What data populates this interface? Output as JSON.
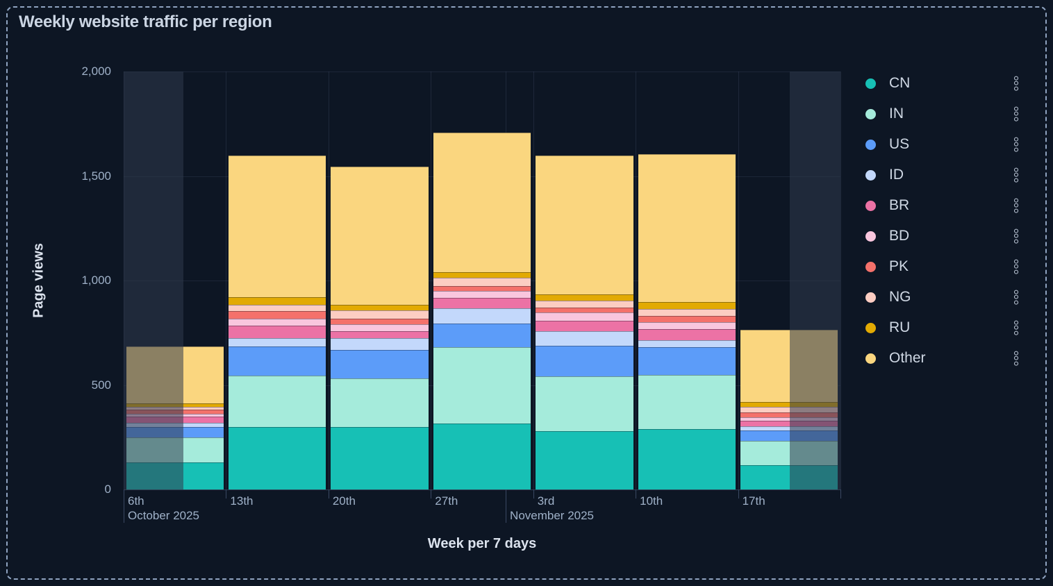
{
  "panel": {
    "title": "Weekly website traffic per region"
  },
  "chart_data": {
    "type": "bar",
    "stacked": true,
    "title": "Weekly website traffic per region",
    "xlabel": "Week per 7 days",
    "ylabel": "Page views",
    "ylim": [
      0,
      2000
    ],
    "grid": true,
    "legend_position": "right",
    "background_color": "#0D1624",
    "y_ticks": [
      {
        "label": "0",
        "value": 0
      },
      {
        "label": "500",
        "value": 500
      },
      {
        "label": "1,000",
        "value": 1000
      },
      {
        "label": "1,500",
        "value": 1500
      },
      {
        "label": "2,000",
        "value": 2000
      }
    ],
    "categories": [
      "6th",
      "13th",
      "20th",
      "27th",
      "3rd",
      "10th",
      "17th"
    ],
    "month_labels": [
      {
        "text": "October 2025",
        "frac": 0
      },
      {
        "text": "November 2025",
        "frac": 0.533
      }
    ],
    "series": [
      {
        "name": "CN",
        "color": "#17C0B5",
        "values": [
          130,
          300,
          300,
          315,
          280,
          290,
          115
        ]
      },
      {
        "name": "IN",
        "color": "#A5EBDB",
        "values": [
          120,
          245,
          232,
          365,
          263,
          259,
          116
        ]
      },
      {
        "name": "US",
        "color": "#5C9CF9",
        "values": [
          50,
          139,
          137,
          115,
          146,
          133,
          50
        ]
      },
      {
        "name": "ID",
        "color": "#C3D8FB",
        "values": [
          18,
          40,
          55,
          73,
          69,
          33,
          22
        ]
      },
      {
        "name": "BR",
        "color": "#EC72A5",
        "values": [
          30,
          60,
          33,
          50,
          51,
          51,
          25
        ]
      },
      {
        "name": "BD",
        "color": "#F9C6DE",
        "values": [
          13,
          33,
          33,
          33,
          37,
          35,
          19
        ]
      },
      {
        "name": "PK",
        "color": "#F4716B",
        "values": [
          22,
          36,
          29,
          22,
          25,
          30,
          22
        ]
      },
      {
        "name": "NG",
        "color": "#FCCDC2",
        "values": [
          13,
          30,
          38,
          39,
          33,
          34,
          25
        ]
      },
      {
        "name": "RU",
        "color": "#E2AA03",
        "values": [
          17,
          36,
          27,
          27,
          30,
          32,
          25
        ]
      },
      {
        "name": "Other",
        "color": "#FAD67F",
        "values": [
          272,
          680,
          660,
          670,
          665,
          708,
          345
        ]
      }
    ],
    "weekly_totals": [
      685,
      1599,
      1544,
      1709,
      1599,
      1605,
      764
    ],
    "dim_regions": [
      {
        "from": 0,
        "to": 0.083
      },
      {
        "from": 0.9295,
        "to": 1.0
      }
    ]
  }
}
